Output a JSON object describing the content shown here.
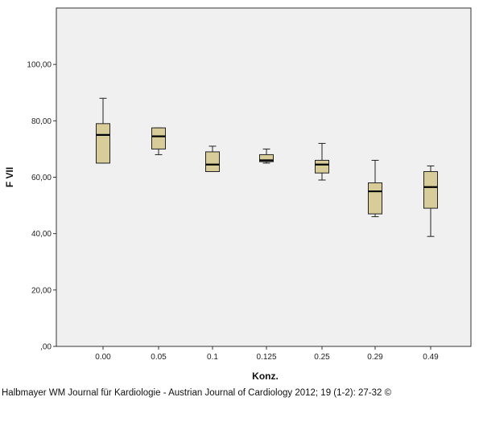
{
  "chart_data": {
    "type": "box",
    "xlabel": "Konz.",
    "ylabel": "F VII",
    "ylim": [
      0,
      120
    ],
    "yticks": [
      0,
      20,
      40,
      60,
      80,
      100
    ],
    "ytick_labels": [
      ",00",
      "20,00",
      "40,00",
      "60,00",
      "80,00",
      "100,00"
    ],
    "categories": [
      "0.00",
      "0.05",
      "0.1",
      "0.125",
      "0.25",
      "0.29",
      "0.49"
    ],
    "boxes": [
      {
        "category": "0.00",
        "min": 65,
        "q1": 65,
        "median": 75,
        "q3": 79,
        "max": 88
      },
      {
        "category": "0.05",
        "min": 68,
        "q1": 70,
        "median": 74.5,
        "q3": 77.5,
        "max": 77.5
      },
      {
        "category": "0.1",
        "min": 62,
        "q1": 62,
        "median": 64.5,
        "q3": 69,
        "max": 71
      },
      {
        "category": "0.125",
        "min": 65,
        "q1": 65.5,
        "median": 66,
        "q3": 68,
        "max": 70
      },
      {
        "category": "0.25",
        "min": 59,
        "q1": 61.5,
        "median": 64.5,
        "q3": 66,
        "max": 72
      },
      {
        "category": "0.29",
        "min": 46,
        "q1": 47,
        "median": 55,
        "q3": 58,
        "max": 66
      },
      {
        "category": "0.49",
        "min": 39,
        "q1": 49,
        "median": 56.5,
        "q3": 62,
        "max": 64
      }
    ],
    "box_fill": "#d8cc98",
    "plot_background": "#f0f0f0",
    "grid": false
  },
  "credit": "Halbmayer WM Journal für Kardiologie - Austrian Journal of Cardiology 2012; 19 (1-2): 27-32 ©"
}
